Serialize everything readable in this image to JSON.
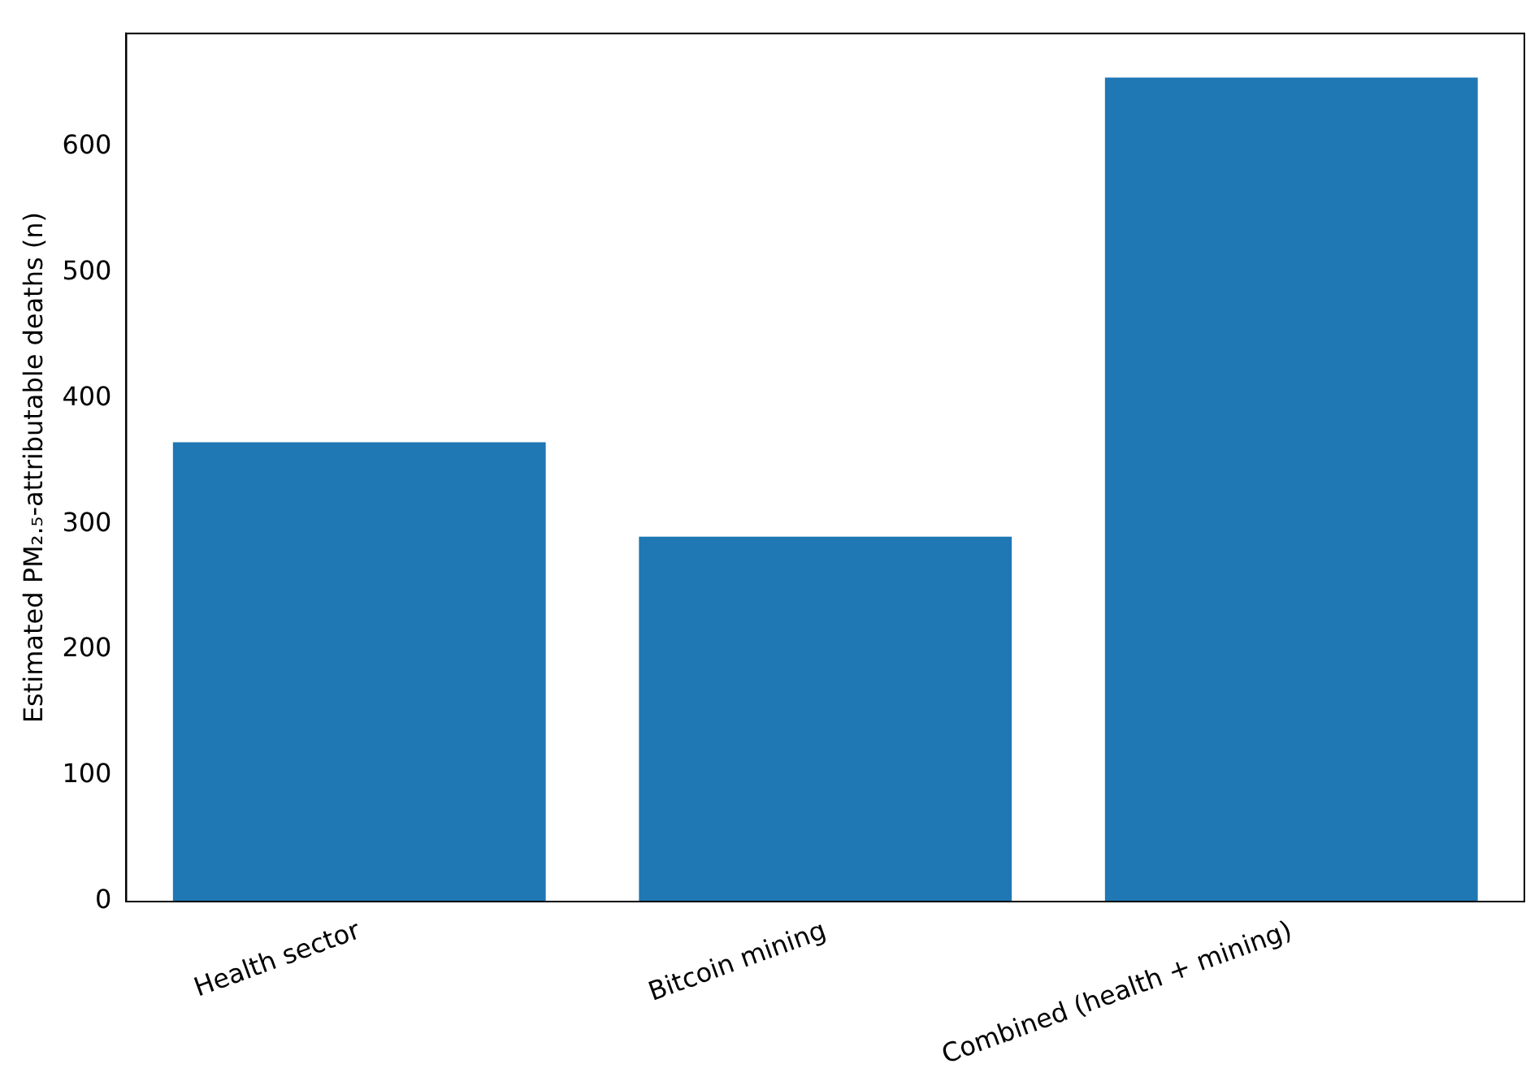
{
  "chart_data": {
    "type": "bar",
    "ylabel": "Estimated PM₂.₅-attributable deaths (n)",
    "categories": [
      "Health sector",
      "Bitcoin mining",
      "Combined (health + mining)"
    ],
    "values": [
      365,
      290,
      655
    ],
    "color": "#1f77b4",
    "ylim": [
      0,
      690
    ],
    "yticks": [
      0,
      100,
      200,
      300,
      400,
      500,
      600
    ],
    "grid": false,
    "legend": false
  }
}
